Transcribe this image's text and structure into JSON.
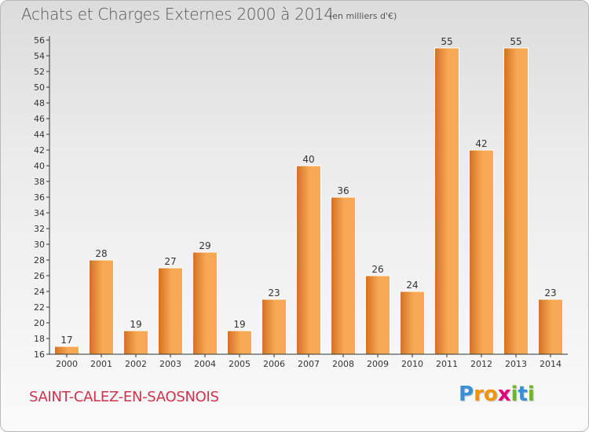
{
  "header": {
    "title": "Achats et Charges Externes 2000 à 2014",
    "unit": "(en milliers d'€)"
  },
  "footer": {
    "commune": "SAINT-CALEZ-EN-SAOSNOIS",
    "logo_letters": [
      "P",
      "r",
      "o",
      "x",
      "i",
      "t",
      "i"
    ],
    "logo_colors": [
      "#3a8fd6",
      "#f29400",
      "#f29400",
      "#e2007a",
      "#6cb52d",
      "#3a8fd6",
      "#6cb52d"
    ]
  },
  "chart_data": {
    "type": "bar",
    "categories": [
      "2000",
      "2001",
      "2002",
      "2003",
      "2004",
      "2005",
      "2006",
      "2007",
      "2008",
      "2009",
      "2010",
      "2011",
      "2012",
      "2013",
      "2014"
    ],
    "values": [
      17,
      28,
      19,
      27,
      29,
      19,
      23,
      40,
      36,
      26,
      24,
      55,
      42,
      55,
      23
    ],
    "ylim": [
      16,
      56
    ],
    "yticks": [
      16,
      18,
      20,
      22,
      24,
      26,
      28,
      30,
      32,
      34,
      36,
      38,
      40,
      42,
      44,
      46,
      48,
      50,
      52,
      54,
      56
    ],
    "grid": false,
    "bar_color_light": "#f7a955",
    "bar_color_dark": "#d2701f",
    "axis_color": "#333333"
  }
}
